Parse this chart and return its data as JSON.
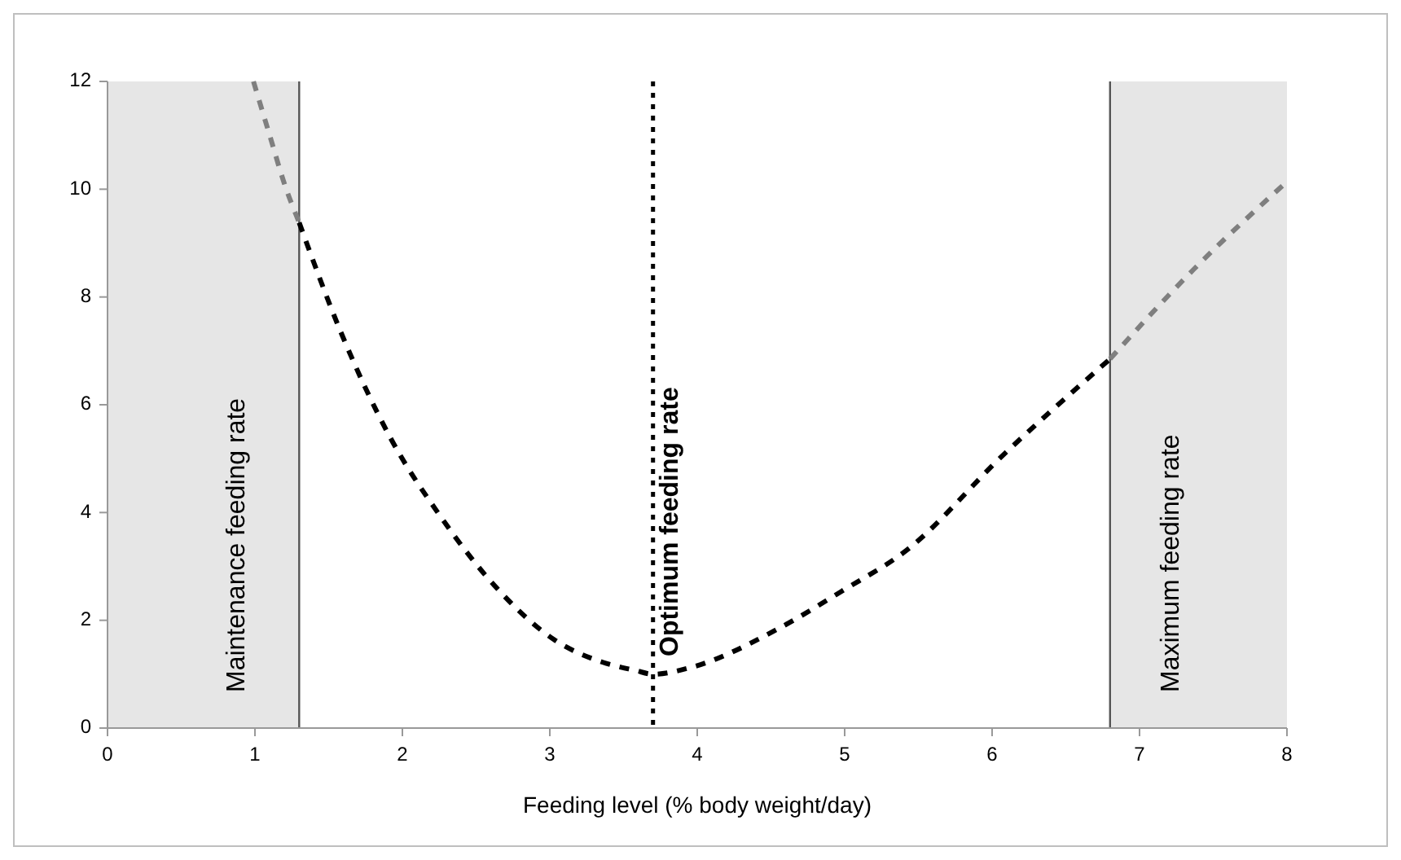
{
  "chart_data": {
    "type": "line",
    "xlabel": "Feeding level (% body weight/day)",
    "xlim": [
      0,
      8
    ],
    "xticks": [
      0,
      1,
      2,
      3,
      4,
      5,
      6,
      7,
      8
    ],
    "ylim": [
      0,
      12
    ],
    "yticks": [
      0,
      2,
      4,
      6,
      8,
      10,
      12
    ],
    "grid": false,
    "marker": "none",
    "line_style": "dashed",
    "series": [
      {
        "color": "#7f7f7f",
        "x": [
          0.99,
          1.1,
          1.2,
          1.3
        ],
        "values": [
          12.0,
          11.0,
          10.1,
          9.38
        ]
      },
      {
        "color": "#000000",
        "x": [
          1.3,
          1.59,
          1.92,
          2.25,
          2.66,
          3.03,
          3.36,
          3.58,
          3.7,
          3.95,
          4.54,
          4.98,
          5.42,
          6.08,
          6.8
        ],
        "values": [
          9.38,
          7.3,
          5.38,
          3.96,
          2.54,
          1.64,
          1.22,
          1.07,
          1.0,
          1.12,
          1.83,
          2.54,
          3.3,
          5.08,
          6.85
        ]
      },
      {
        "color": "#7f7f7f",
        "x": [
          6.8,
          7.37,
          7.98
        ],
        "values": [
          6.85,
          8.52,
          10.09
        ]
      }
    ],
    "ref_lines": [
      {
        "axis": "x",
        "value": 3.7,
        "label": "Optimum feeding rate",
        "color": "#000000",
        "line_style": "dotted"
      },
      {
        "axis": "x",
        "value": 1.3,
        "color": "#555555",
        "line_style": "solid"
      },
      {
        "axis": "x",
        "value": 6.8,
        "color": "#555555",
        "line_style": "solid"
      }
    ],
    "bands": [
      {
        "axis": "x",
        "from": 0,
        "to": 1.3,
        "label": "Maintenance feeding rate",
        "color": "#e6e6e6"
      },
      {
        "axis": "x",
        "from": 6.8,
        "to": 8,
        "label": "Maximum feeding rate",
        "color": "#e6e6e6"
      }
    ]
  }
}
